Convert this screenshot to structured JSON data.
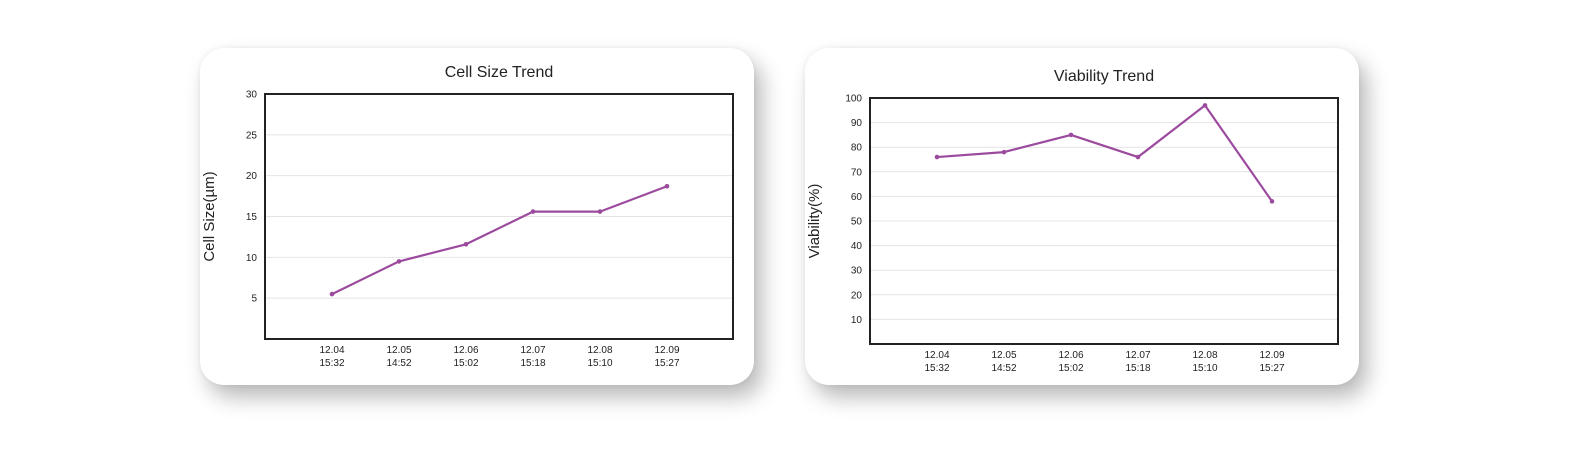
{
  "chart_data": [
    {
      "type": "line",
      "title": "Cell Size Trend",
      "xlabel": "",
      "ylabel": "Cell Size(µm)",
      "categories": [
        [
          "12.04",
          "15:32"
        ],
        [
          "12.05",
          "14:52"
        ],
        [
          "12.06",
          "15:02"
        ],
        [
          "12.07",
          "15:18"
        ],
        [
          "12.08",
          "15:10"
        ],
        [
          "12.09",
          "15:27"
        ]
      ],
      "values": [
        5.5,
        9.5,
        11.6,
        15.6,
        15.6,
        18.7
      ],
      "ylim": [
        0,
        30
      ],
      "yticks": [
        5,
        10,
        15,
        20,
        25,
        30
      ],
      "grid": true,
      "color": "#9b4a9e"
    },
    {
      "type": "line",
      "title": "Viability Trend",
      "xlabel": "",
      "ylabel": "Viability(%)",
      "categories": [
        [
          "12.04",
          "15:32"
        ],
        [
          "12.05",
          "14:52"
        ],
        [
          "12.06",
          "15:02"
        ],
        [
          "12.07",
          "15:18"
        ],
        [
          "12.08",
          "15:10"
        ],
        [
          "12.09",
          "15:27"
        ]
      ],
      "values": [
        76,
        78,
        85,
        76,
        97,
        58
      ],
      "ylim": [
        0,
        100
      ],
      "yticks": [
        10,
        20,
        30,
        40,
        50,
        60,
        70,
        80,
        90,
        100
      ],
      "grid": true,
      "color": "#9b4a9e"
    }
  ]
}
